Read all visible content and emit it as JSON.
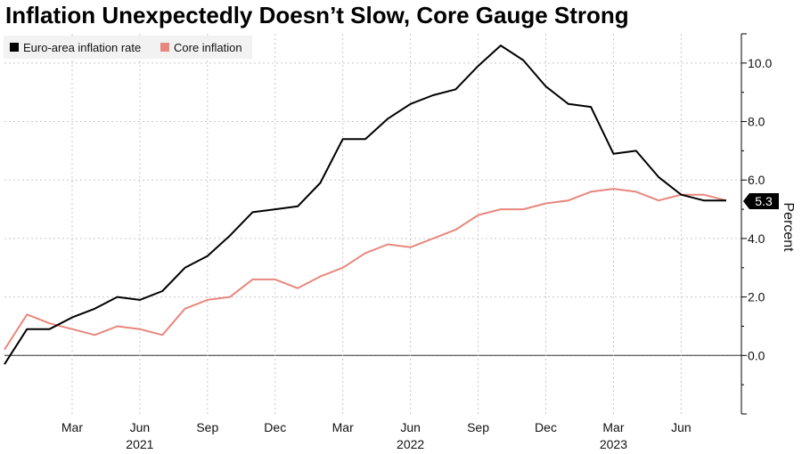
{
  "chart_data": {
    "type": "line",
    "title": "Inflation Unexpectedly Doesn’t Slow, Core Gauge Strong",
    "ylabel": "Percent",
    "ylim": [
      -2,
      11
    ],
    "yticks": [
      0,
      2,
      4,
      6,
      8,
      10
    ],
    "ytick_labels": [
      "0.0",
      "2.0",
      "4.0",
      "6.0",
      "8.0",
      "10.0"
    ],
    "x": [
      "2020-12",
      "2021-01",
      "2021-02",
      "2021-03",
      "2021-04",
      "2021-05",
      "2021-06",
      "2021-07",
      "2021-08",
      "2021-09",
      "2021-10",
      "2021-11",
      "2021-12",
      "2022-01",
      "2022-02",
      "2022-03",
      "2022-04",
      "2022-05",
      "2022-06",
      "2022-07",
      "2022-08",
      "2022-09",
      "2022-10",
      "2022-11",
      "2022-12",
      "2023-01",
      "2023-02",
      "2023-03",
      "2023-04",
      "2023-05",
      "2023-06",
      "2023-07",
      "2023-08"
    ],
    "xticks": [
      {
        "month": "2021-03",
        "label": "Mar"
      },
      {
        "month": "2021-06",
        "label": "Jun"
      },
      {
        "month": "2021-09",
        "label": "Sep"
      },
      {
        "month": "2021-12",
        "label": "Dec"
      },
      {
        "month": "2022-03",
        "label": "Mar"
      },
      {
        "month": "2022-06",
        "label": "Jun"
      },
      {
        "month": "2022-09",
        "label": "Sep"
      },
      {
        "month": "2022-12",
        "label": "Dec"
      },
      {
        "month": "2023-03",
        "label": "Mar"
      },
      {
        "month": "2023-06",
        "label": "Jun"
      }
    ],
    "year_labels": [
      {
        "month": "2021-06",
        "label": "2021"
      },
      {
        "month": "2022-06",
        "label": "2022"
      },
      {
        "month": "2023-03",
        "label": "2023"
      }
    ],
    "series": [
      {
        "name": "Euro-area inflation rate",
        "color": "#000000",
        "values": [
          -0.3,
          0.9,
          0.9,
          1.3,
          1.6,
          2.0,
          1.9,
          2.2,
          3.0,
          3.4,
          4.1,
          4.9,
          5.0,
          5.1,
          5.9,
          7.4,
          7.4,
          8.1,
          8.6,
          8.9,
          9.1,
          9.9,
          10.6,
          10.1,
          9.2,
          8.6,
          8.5,
          6.9,
          7.0,
          6.1,
          5.5,
          5.3,
          5.3
        ]
      },
      {
        "name": "Core inflation",
        "color": "#e8877d",
        "values": [
          0.2,
          1.4,
          1.1,
          0.9,
          0.7,
          1.0,
          0.9,
          0.7,
          1.6,
          1.9,
          2.0,
          2.6,
          2.6,
          2.3,
          2.7,
          3.0,
          3.5,
          3.8,
          3.7,
          4.0,
          4.3,
          4.8,
          5.0,
          5.0,
          5.2,
          5.3,
          5.6,
          5.7,
          5.6,
          5.3,
          5.5,
          5.5,
          5.3
        ]
      }
    ],
    "last_value_label": "5.3",
    "legend_position": "top-left",
    "grid": true
  }
}
